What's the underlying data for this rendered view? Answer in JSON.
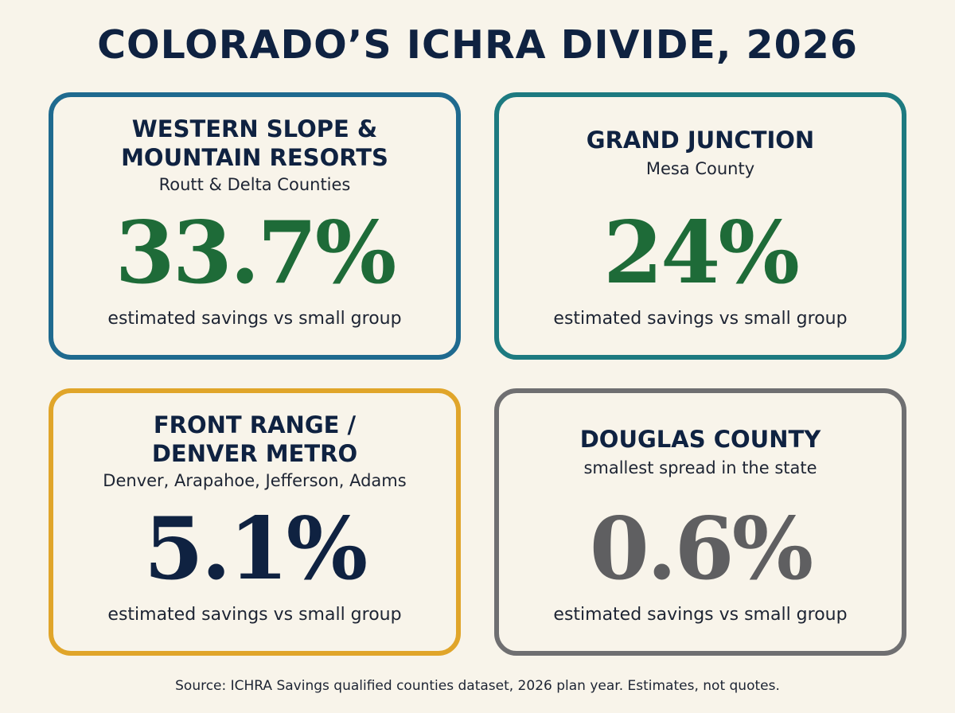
{
  "title": "COLORADO’S ICHRA DIVIDE, 2026",
  "cards": [
    {
      "title_lines": [
        "WESTERN SLOPE &",
        "MOUNTAIN RESORTS"
      ],
      "subtitle": "Routt & Delta Counties",
      "value": "33.7%",
      "caption": "estimated savings vs small group",
      "border_color": "#1f6a8f",
      "value_color": "#1e6b38"
    },
    {
      "title_lines": [
        "GRAND JUNCTION"
      ],
      "subtitle": "Mesa County",
      "value": "24%",
      "caption": "estimated savings vs small group",
      "border_color": "#1d7a80",
      "value_color": "#1e6b38"
    },
    {
      "title_lines": [
        "FRONT RANGE /",
        "DENVER METRO"
      ],
      "subtitle": "Denver, Arapahoe, Jefferson, Adams",
      "value": "5.1%",
      "caption": "estimated savings vs small group",
      "border_color": "#e0a52a",
      "value_color": "#0f2241"
    },
    {
      "title_lines": [
        "DOUGLAS COUNTY"
      ],
      "subtitle": "smallest spread in the state",
      "value": "0.6%",
      "caption": "estimated savings vs small group",
      "border_color": "#6f6f71",
      "value_color": "#5f5f61"
    }
  ],
  "source": "Source:  ICHRA Savings qualified counties dataset, 2026 plan year. Estimates, not quotes."
}
